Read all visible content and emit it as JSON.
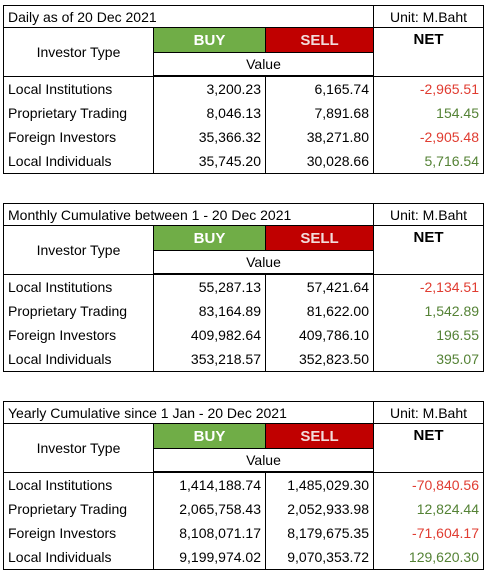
{
  "tables": [
    {
      "title": "Daily as of 20 Dec 2021",
      "unit": "Unit: M.Baht",
      "investor_type": "Investor Type",
      "buy": "BUY",
      "sell": "SELL",
      "net": "NET",
      "value": "Value",
      "rows": [
        [
          "Local Institutions",
          "3,200.23",
          "6,165.74",
          "-2,965.51"
        ],
        [
          "Proprietary Trading",
          "8,046.13",
          "7,891.68",
          "154.45"
        ],
        [
          "Foreign Investors",
          "35,366.32",
          "38,271.80",
          "-2,905.48"
        ],
        [
          "Local Individuals",
          "35,745.20",
          "30,028.66",
          "5,716.54"
        ]
      ]
    },
    {
      "title": "Monthly Cumulative between 1 - 20 Dec 2021",
      "unit": "Unit: M.Baht",
      "investor_type": "Investor Type",
      "buy": "BUY",
      "sell": "SELL",
      "net": "NET",
      "value": "Value",
      "rows": [
        [
          "Local Institutions",
          "55,287.13",
          "57,421.64",
          "-2,134.51"
        ],
        [
          "Proprietary Trading",
          "83,164.89",
          "81,622.00",
          "1,542.89"
        ],
        [
          "Foreign Investors",
          "409,982.64",
          "409,786.10",
          "196.55"
        ],
        [
          "Local Individuals",
          "353,218.57",
          "352,823.50",
          "395.07"
        ]
      ]
    },
    {
      "title": "Yearly Cumulative since 1 Jan - 20 Dec 2021",
      "unit": "Unit: M.Baht",
      "investor_type": "Investor Type",
      "buy": "BUY",
      "sell": "SELL",
      "net": "NET",
      "value": "Value",
      "rows": [
        [
          "Local Institutions",
          "1,414,188.74",
          "1,485,029.30",
          "-70,840.56"
        ],
        [
          "Proprietary Trading",
          "2,065,758.43",
          "2,052,933.98",
          "12,824.44"
        ],
        [
          "Foreign Investors",
          "8,108,071.17",
          "8,179,675.35",
          "-71,604.17"
        ],
        [
          "Local Individuals",
          "9,199,974.02",
          "9,070,353.72",
          "129,620.30"
        ]
      ]
    }
  ]
}
